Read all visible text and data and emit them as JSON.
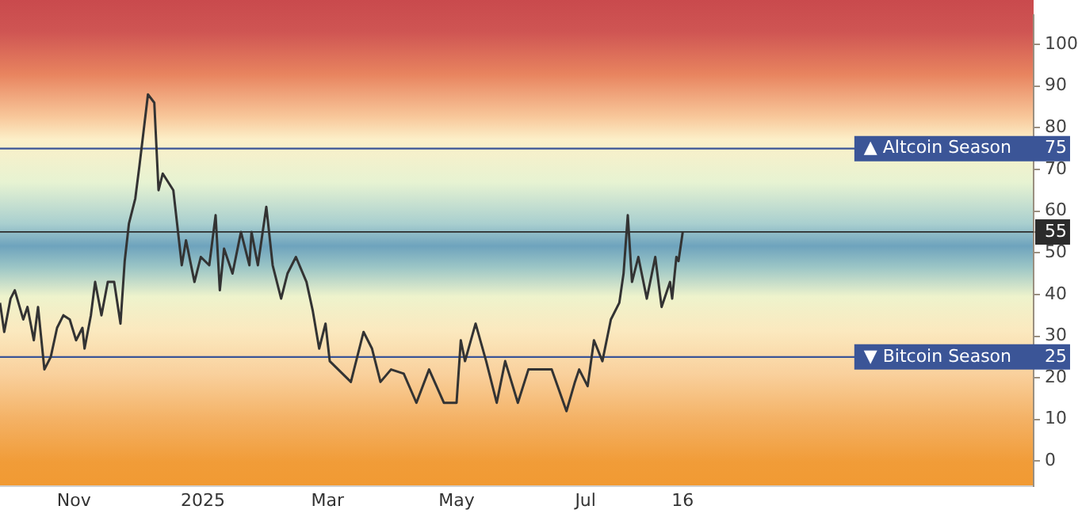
{
  "chart_data": {
    "type": "line",
    "x": [
      "2024-09-27",
      "2024-09-29",
      "2024-10-02",
      "2024-10-04",
      "2024-10-08",
      "2024-10-10",
      "2024-10-13",
      "2024-10-15",
      "2024-10-18",
      "2024-10-21",
      "2024-10-24",
      "2024-10-27",
      "2024-10-30",
      "2024-11-02",
      "2024-11-05",
      "2024-11-06",
      "2024-11-09",
      "2024-11-11",
      "2024-11-14",
      "2024-11-17",
      "2024-11-20",
      "2024-11-23",
      "2024-11-25",
      "2024-11-27",
      "2024-11-30",
      "2024-12-02",
      "2024-12-06",
      "2024-12-09",
      "2024-12-11",
      "2024-12-13",
      "2024-12-18",
      "2024-12-22",
      "2024-12-24",
      "2024-12-28",
      "2024-12-31",
      "2025-01-04",
      "2025-01-07",
      "2025-01-09",
      "2025-01-11",
      "2025-01-15",
      "2025-01-19",
      "2025-01-23",
      "2025-01-24",
      "2025-01-27",
      "2025-01-31",
      "2025-02-03",
      "2025-02-07",
      "2025-02-10",
      "2025-02-14",
      "2025-02-19",
      "2025-02-22",
      "2025-02-25",
      "2025-02-28",
      "2025-03-02",
      "2025-03-06",
      "2025-03-12",
      "2025-03-18",
      "2025-03-22",
      "2025-03-26",
      "2025-03-31",
      "2025-04-06",
      "2025-04-12",
      "2025-04-18",
      "2025-04-25",
      "2025-05-01",
      "2025-05-03",
      "2025-05-05",
      "2025-05-10",
      "2025-05-15",
      "2025-05-20",
      "2025-05-24",
      "2025-05-30",
      "2025-06-04",
      "2025-06-09",
      "2025-06-15",
      "2025-06-22",
      "2025-06-26",
      "2025-06-28",
      "2025-07-02",
      "2025-07-05",
      "2025-07-09",
      "2025-07-13",
      "2025-07-17",
      "2025-07-19",
      "2025-07-21",
      "2025-07-23",
      "2025-07-26",
      "2025-07-30",
      "2025-08-03",
      "2025-08-06",
      "2025-08-10",
      "2025-08-11",
      "2025-08-13",
      "2025-08-14",
      "2025-08-16"
    ],
    "series": [
      {
        "color": "#333333",
        "values": [
          38,
          31,
          39,
          41,
          34,
          37,
          29,
          37,
          22,
          25,
          32,
          35,
          34,
          29,
          32,
          27,
          35,
          43,
          35,
          43,
          43,
          33,
          48,
          57,
          63,
          71,
          88,
          86,
          65,
          69,
          65,
          47,
          53,
          43,
          49,
          47,
          59,
          41,
          51,
          45,
          55,
          47,
          55,
          47,
          61,
          47,
          39,
          45,
          49,
          43,
          36,
          27,
          33,
          24,
          22,
          19,
          31,
          27,
          19,
          22,
          21,
          14,
          22,
          14,
          14,
          29,
          24,
          33,
          24,
          14,
          24,
          14,
          22,
          22,
          22,
          12,
          19,
          22,
          18,
          29,
          24,
          34,
          38,
          45,
          59,
          43,
          49,
          39,
          49,
          37,
          43,
          39,
          49,
          48,
          55
        ]
      }
    ],
    "xlim": [
      "2024-09-27",
      "2026-01-29"
    ],
    "xticks": [
      {
        "value": "2024-11-01",
        "label": "Nov"
      },
      {
        "value": "2025-01-01",
        "label": "2025"
      },
      {
        "value": "2025-03-01",
        "label": "Mar"
      },
      {
        "value": "2025-05-01",
        "label": "May"
      },
      {
        "value": "2025-07-01",
        "label": "Jul"
      },
      {
        "value": "2025-08-16",
        "label": "16"
      }
    ],
    "ylim": [
      -6,
      107
    ],
    "yticks": [
      0,
      10,
      20,
      25,
      30,
      40,
      50,
      55,
      60,
      70,
      75,
      80,
      90,
      100
    ],
    "ref_lines": [
      {
        "axis": "y",
        "value": 75,
        "label": "▲ Altcoin Season",
        "color": "#3b5597"
      },
      {
        "axis": "y",
        "value": 25,
        "label": "▼ Bitcoin Season",
        "color": "#3b5597"
      },
      {
        "axis": "y",
        "value": 55,
        "label": null,
        "color": "#2b2b2b"
      }
    ],
    "grid": false,
    "legend": false,
    "marker": "none",
    "line_style": "solid"
  }
}
